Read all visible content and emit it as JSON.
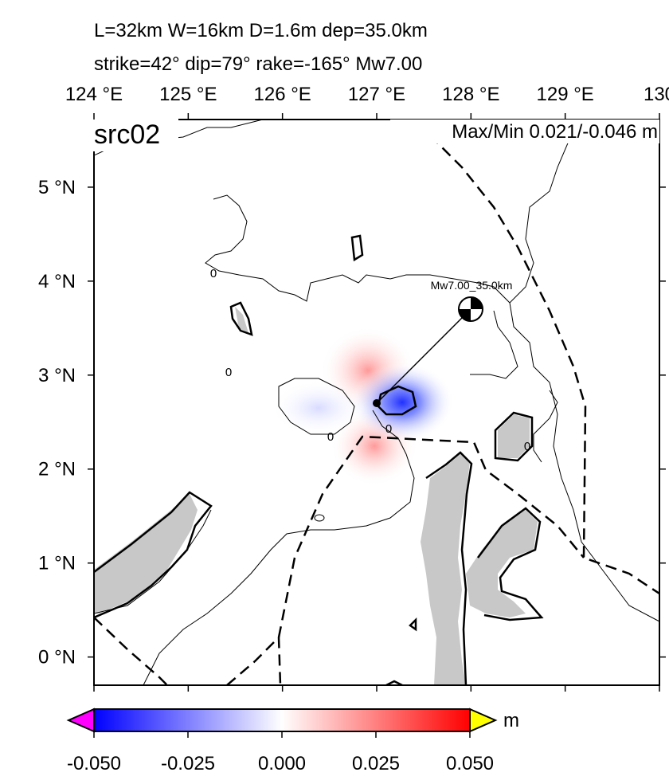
{
  "title_lines": [
    "L=32km W=16km D=1.6m dep=35.0km",
    "strike=42° dip=79° rake=-165° Mw7.00"
  ],
  "map": {
    "label": "src02",
    "maxmin": "Max/Min 0.021/-0.046 m",
    "annotation": "Mw7.00_35.0km",
    "xlim": [
      124,
      130
    ],
    "ylim": [
      -0.3,
      5.72
    ],
    "xticks": [
      {
        "value": 124,
        "label": "124 °E"
      },
      {
        "value": 125,
        "label": "125 °E"
      },
      {
        "value": 126,
        "label": "126 °E"
      },
      {
        "value": 127,
        "label": "127 °E"
      },
      {
        "value": 128,
        "label": "128 °E"
      },
      {
        "value": 129,
        "label": "129 °E"
      },
      {
        "value": 130,
        "label": "130"
      }
    ],
    "yticks": [
      {
        "value": 0,
        "label": "0 °N"
      },
      {
        "value": 1,
        "label": "1 °N"
      },
      {
        "value": 2,
        "label": "2 °N"
      },
      {
        "value": 3,
        "label": "3 °N"
      },
      {
        "value": 4,
        "label": "4 °N"
      },
      {
        "value": 5,
        "label": "5 °N"
      }
    ],
    "contour_labels": [
      "0",
      "0",
      "0",
      "0",
      "0"
    ]
  },
  "colorbar": {
    "lim": [
      -0.05,
      0.05
    ],
    "unit": "m",
    "ticks": [
      {
        "value": -0.05,
        "label": "-0.050"
      },
      {
        "value": -0.025,
        "label": "-0.025"
      },
      {
        "value": 0,
        "label": "0.000"
      },
      {
        "value": 0.025,
        "label": "0.025"
      },
      {
        "value": 0.05,
        "label": "0.050"
      }
    ]
  }
}
